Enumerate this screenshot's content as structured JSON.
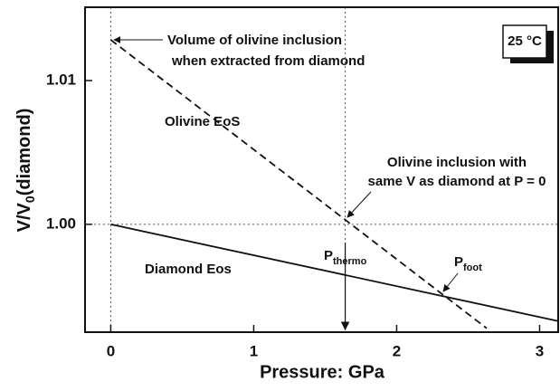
{
  "chart_data": {
    "type": "line",
    "xlabel": "Pressure: GPa",
    "ylabel_parts": [
      "V/V",
      "0",
      "(diamond)"
    ],
    "xlim": [
      -0.18,
      3.13
    ],
    "ylim": [
      0.9925,
      1.0151
    ],
    "xticks": [
      0,
      1,
      2,
      3
    ],
    "yticks": [
      {
        "value": 1.0,
        "label": "1.00"
      },
      1.01
    ],
    "series": [
      {
        "name": "Diamond Eos",
        "color": "#111111",
        "style": "solid",
        "x": [
          0,
          3.13
        ],
        "values": [
          1.0,
          0.99327
        ]
      },
      {
        "name": "Olivine EoS",
        "color": "#111111",
        "style": "dashed",
        "x": [
          0,
          2.63
        ],
        "values": [
          1.01283,
          0.99277
        ]
      }
    ],
    "reference_lines": {
      "x": [
        0,
        1.64
      ],
      "y": [
        1.0
      ]
    },
    "annotations": [
      "Volume of olivine inclusion",
      "when extracted from diamond",
      "Olivine inclusion with",
      "same V as diamond at P = 0"
    ],
    "p_thermo": [
      "P",
      "thermo"
    ],
    "p_foot": [
      "P",
      "foot"
    ],
    "temperature_box": "25 °C"
  }
}
